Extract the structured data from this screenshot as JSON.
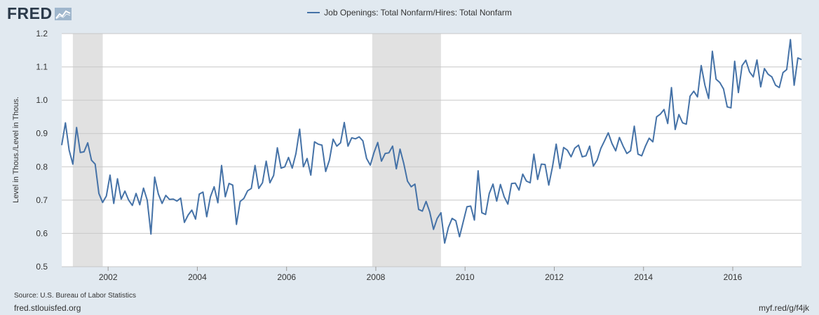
{
  "header": {
    "logo_text": "FRED",
    "logo_icon": "chart-line-icon"
  },
  "footer": {
    "source": "Source: U.S. Bureau of Labor Statistics",
    "site": "fred.stlouisfed.org",
    "shortlink": "myf.red/g/f4jk"
  },
  "colors": {
    "line": "#4572a7",
    "recession": "#e1e1e1",
    "plot_bg": "#ffffff",
    "page_bg": "#e1e9f0",
    "grid": "#c8c8c8"
  },
  "chart_data": {
    "type": "line",
    "title": "",
    "xlabel": "",
    "ylabel": "Level in Thous./Level in Thous.",
    "xlim": [
      2000.96,
      2017.54
    ],
    "ylim": [
      0.5,
      1.2
    ],
    "x_ticks": [
      2002,
      2004,
      2006,
      2008,
      2010,
      2012,
      2014,
      2016
    ],
    "y_ticks": [
      0.5,
      0.6,
      0.7,
      0.8,
      0.9,
      1.0,
      1.1,
      1.2
    ],
    "y_tick_labels": [
      "0.5",
      "0.6",
      "0.7",
      "0.8",
      "0.9",
      "1.0",
      "1.1",
      "1.2"
    ],
    "grid": true,
    "legend_position": "top-center",
    "recessions": [
      [
        2001.21,
        2001.88
      ],
      [
        2007.92,
        2009.46
      ]
    ],
    "series": [
      {
        "name": "Job Openings: Total Nonfarm/Hires: Total Nonfarm",
        "start_year": 2000.96,
        "step_years": 0.08333,
        "values": [
          0.865,
          0.932,
          0.85,
          0.808,
          0.918,
          0.843,
          0.845,
          0.872,
          0.82,
          0.808,
          0.72,
          0.693,
          0.712,
          0.775,
          0.69,
          0.764,
          0.703,
          0.727,
          0.7,
          0.684,
          0.72,
          0.686,
          0.736,
          0.7,
          0.598,
          0.769,
          0.718,
          0.69,
          0.714,
          0.702,
          0.703,
          0.697,
          0.706,
          0.633,
          0.655,
          0.67,
          0.643,
          0.718,
          0.724,
          0.65,
          0.71,
          0.74,
          0.692,
          0.804,
          0.71,
          0.75,
          0.745,
          0.627,
          0.696,
          0.705,
          0.728,
          0.735,
          0.804,
          0.735,
          0.752,
          0.817,
          0.752,
          0.774,
          0.857,
          0.796,
          0.8,
          0.828,
          0.796,
          0.84,
          0.913,
          0.8,
          0.825,
          0.775,
          0.875,
          0.868,
          0.865,
          0.786,
          0.82,
          0.883,
          0.862,
          0.872,
          0.933,
          0.862,
          0.887,
          0.884,
          0.89,
          0.878,
          0.825,
          0.805,
          0.843,
          0.873,
          0.817,
          0.84,
          0.842,
          0.862,
          0.794,
          0.853,
          0.81,
          0.757,
          0.74,
          0.748,
          0.672,
          0.667,
          0.696,
          0.664,
          0.612,
          0.645,
          0.662,
          0.571,
          0.618,
          0.645,
          0.638,
          0.59,
          0.635,
          0.68,
          0.682,
          0.64,
          0.788,
          0.662,
          0.657,
          0.72,
          0.748,
          0.697,
          0.747,
          0.71,
          0.688,
          0.75,
          0.751,
          0.73,
          0.778,
          0.757,
          0.752,
          0.838,
          0.762,
          0.808,
          0.807,
          0.745,
          0.8,
          0.868,
          0.795,
          0.858,
          0.85,
          0.83,
          0.856,
          0.865,
          0.83,
          0.833,
          0.862,
          0.802,
          0.82,
          0.855,
          0.878,
          0.902,
          0.87,
          0.848,
          0.888,
          0.862,
          0.84,
          0.848,
          0.922,
          0.838,
          0.833,
          0.862,
          0.886,
          0.875,
          0.95,
          0.958,
          0.972,
          0.93,
          1.038,
          0.912,
          0.957,
          0.932,
          0.928,
          1.012,
          1.027,
          1.01,
          1.104,
          1.045,
          1.005,
          1.147,
          1.063,
          1.053,
          1.034,
          0.98,
          0.977,
          1.117,
          1.023,
          1.104,
          1.12,
          1.085,
          1.07,
          1.121,
          1.04,
          1.095,
          1.078,
          1.07,
          1.045,
          1.038,
          1.083,
          1.092,
          1.182,
          1.045,
          1.127,
          1.122
        ]
      }
    ]
  }
}
